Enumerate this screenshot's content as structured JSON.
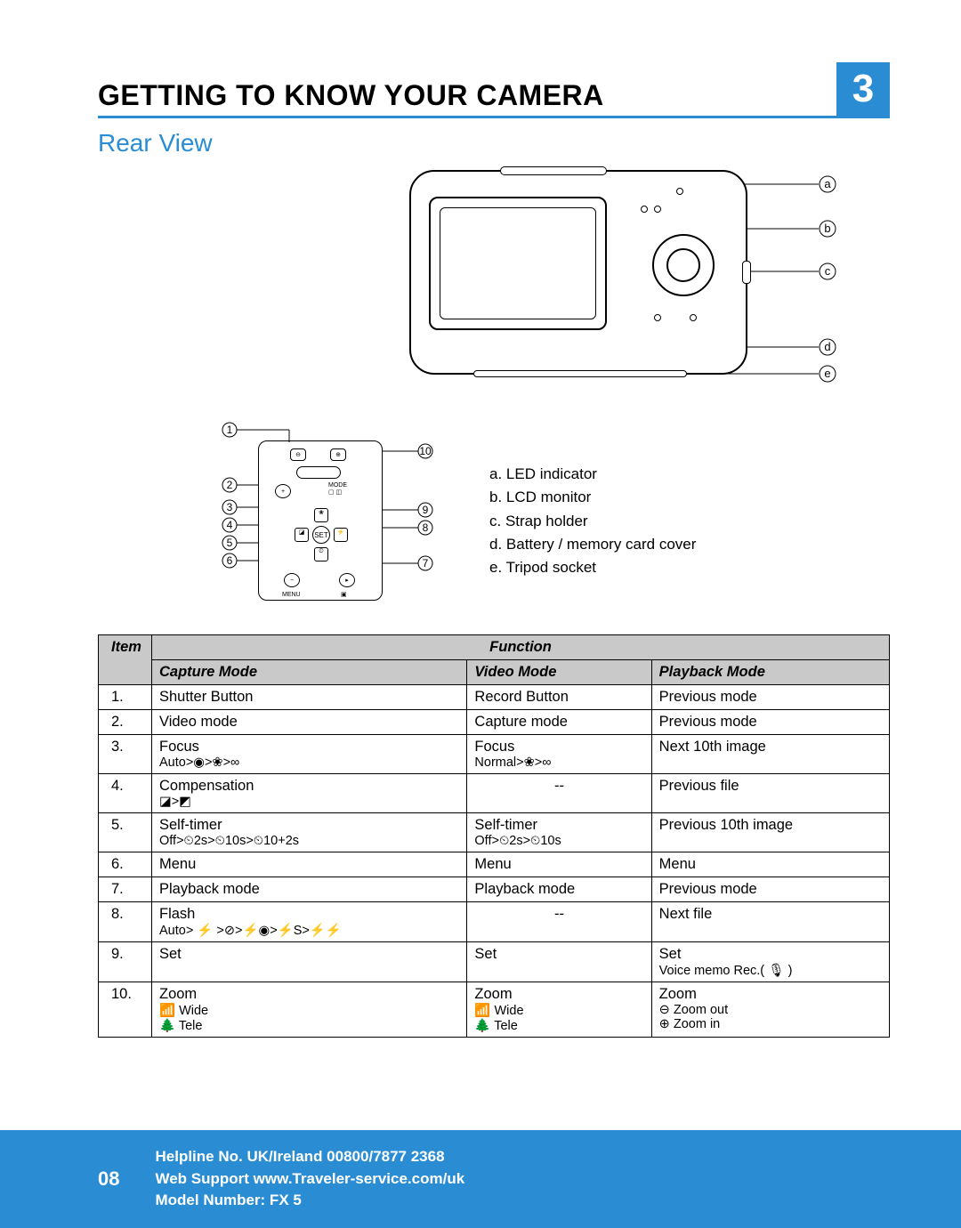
{
  "colors": {
    "accent": "#2a8dd4",
    "header_bg": "#c9c9c9",
    "text": "#000000",
    "footer_text": "#ffffff"
  },
  "chapter": {
    "title": "GETTING TO KNOW YOUR CAMERA",
    "number": "3"
  },
  "section_title": "Rear View",
  "callouts_right": {
    "a": "a",
    "b": "b",
    "c": "c",
    "d": "d",
    "e": "e"
  },
  "callouts_left_nums": [
    "1",
    "2",
    "3",
    "4",
    "5",
    "6",
    "7",
    "8",
    "9",
    "10"
  ],
  "parts": {
    "a": "a. LED indicator",
    "b": "b. LCD monitor",
    "c": "c. Strap holder",
    "d": "d. Battery / memory card cover",
    "e": "e. Tripod socket"
  },
  "table": {
    "header_item": "Item",
    "header_function": "Function",
    "header_capture": "Capture Mode",
    "header_video": "Video Mode",
    "header_playback": "Playback Mode",
    "rows": [
      {
        "n": "1.",
        "cap": "Shutter Button",
        "cap2": "",
        "vid": "Record Button",
        "vid2": "",
        "pb": "Previous mode",
        "pb2": ""
      },
      {
        "n": "2.",
        "cap": "Video mode",
        "cap2": "",
        "vid": "Capture mode",
        "vid2": "",
        "pb": "Previous mode",
        "pb2": ""
      },
      {
        "n": "3.",
        "cap": "Focus",
        "cap2": "Auto>◉>❀>∞",
        "vid": "Focus",
        "vid2": "Normal>❀>∞",
        "pb": "Next 10th image",
        "pb2": ""
      },
      {
        "n": "4.",
        "cap": "Compensation",
        "cap2": "◪>◩",
        "vid": "--",
        "vid2": "",
        "pb": "Previous file",
        "pb2": ""
      },
      {
        "n": "5.",
        "cap": "Self-timer",
        "cap2": "Off>⏲2s>⏲10s>⏲10+2s",
        "vid": "Self-timer",
        "vid2": "Off>⏲2s>⏲10s",
        "pb": "Previous 10th image",
        "pb2": ""
      },
      {
        "n": "6.",
        "cap": "Menu",
        "cap2": "",
        "vid": "Menu",
        "vid2": "",
        "pb": "Menu",
        "pb2": ""
      },
      {
        "n": "7.",
        "cap": "Playback mode",
        "cap2": "",
        "vid": "Playback mode",
        "vid2": "",
        "pb": "Previous mode",
        "pb2": ""
      },
      {
        "n": "8.",
        "cap": "Flash",
        "cap2": "Auto> ⚡ >⊘>⚡◉>⚡S>⚡⚡",
        "vid": "--",
        "vid2": "",
        "pb": "Next file",
        "pb2": ""
      },
      {
        "n": "9.",
        "cap": "Set",
        "cap2": "",
        "vid": "Set",
        "vid2": "",
        "pb": "Set",
        "pb2": "Voice memo Rec.( 🎙 )"
      },
      {
        "n": "10.",
        "cap": "Zoom",
        "cap2": "📶 Wide\n🌲  Tele",
        "vid": "Zoom",
        "vid2": "📶 Wide\n🌲  Tele",
        "pb": "Zoom",
        "pb2": "⊖ Zoom out\n⊕ Zoom in"
      }
    ]
  },
  "footer": {
    "page": "08",
    "line1": "Helpline No. UK/Ireland 00800/7877 2368",
    "line2": "Web Support www.Traveler-service.com/uk",
    "line3": "Model Number: FX 5"
  }
}
